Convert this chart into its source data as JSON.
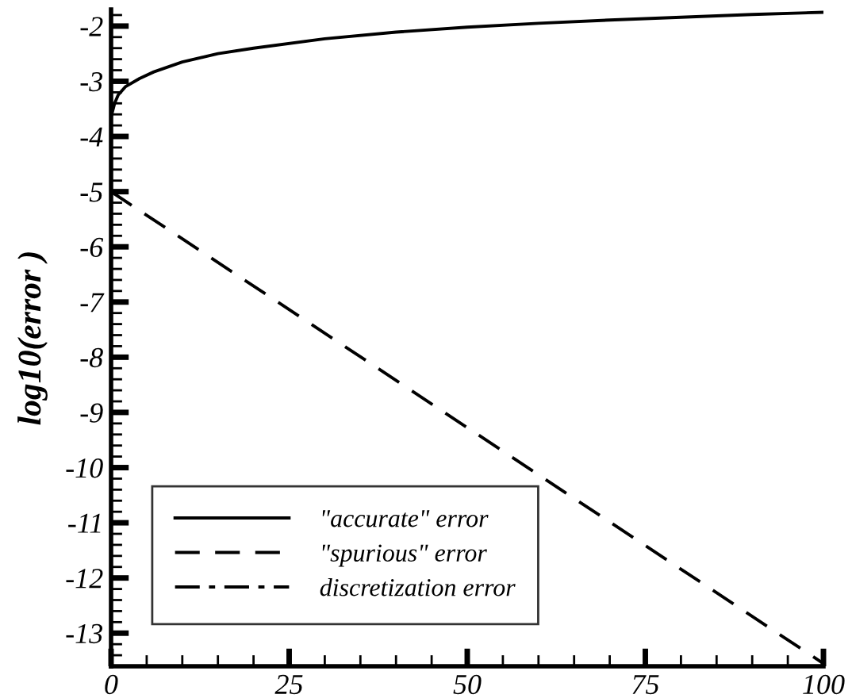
{
  "chart_data": {
    "type": "line",
    "ylabel": "log10(error )",
    "xlim": [
      0,
      100
    ],
    "xticks": [
      0,
      25,
      50,
      75,
      100
    ],
    "ylim": [
      -13.6,
      -1.7
    ],
    "yticks": [
      -2,
      -3,
      -4,
      -5,
      -6,
      -7,
      -8,
      -9,
      -10,
      -11,
      -12,
      -13
    ],
    "legend": "bottom left",
    "grid": false,
    "series": [
      {
        "name": "\"accurate\" error",
        "color": "#000000",
        "line_style": "solid",
        "x": [
          0,
          0.5,
          1,
          2,
          4,
          6,
          10,
          15,
          20,
          30,
          40,
          50,
          60,
          70,
          80,
          90,
          100
        ],
        "values": [
          -3.65,
          -3.4,
          -3.25,
          -3.1,
          -2.95,
          -2.83,
          -2.65,
          -2.5,
          -2.4,
          -2.23,
          -2.11,
          -2.02,
          -1.95,
          -1.89,
          -1.84,
          -1.79,
          -1.75
        ]
      },
      {
        "name": "\"spurious\" error",
        "color": "#000000",
        "line_style": "dashed",
        "x": [
          0,
          100
        ],
        "values": [
          -5.0,
          -13.55
        ]
      },
      {
        "name": "discretization error",
        "color": "#000000",
        "line_style": "dashdot"
      }
    ]
  }
}
